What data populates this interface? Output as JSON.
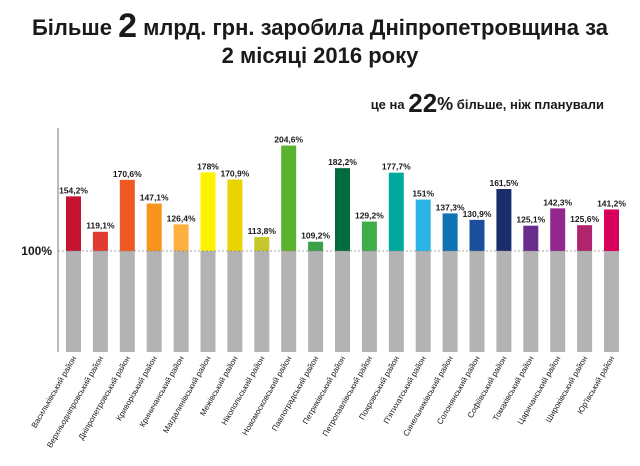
{
  "title": {
    "line1_before": "Більше",
    "line1_number": "2",
    "line1_after": "млрд. грн. заробила Дніпропетровщина за",
    "line2": "2 місяці 2016 року"
  },
  "subtitle": {
    "before": "це на",
    "number": "22",
    "percent": "%",
    "after": "більше, ніж планували"
  },
  "chart_data": {
    "type": "bar",
    "reference_value": 100,
    "reference_label": "100%",
    "ylim": [
      0,
      210
    ],
    "categories": [
      "Васильківський район",
      "Верхньодніпровський район",
      "Дніпропетровський район",
      "Криворізький район",
      "Криничанський район",
      "Магдалинівський район",
      "Межівський район",
      "Нікопольський район",
      "Новомосковський район",
      "Павлоградський район",
      "Петриківський район",
      "Петропавлівський район",
      "Покровський район",
      "П'ятихатський район",
      "Синельниківський район",
      "Солонянський район",
      "Софіївський район",
      "Томаківський район",
      "Царичанський район",
      "Широківський район",
      "Юр'ївський район"
    ],
    "values": [
      154.2,
      119.1,
      170.6,
      147.1,
      126.4,
      178,
      170.9,
      113.8,
      204.6,
      109.2,
      182.2,
      129.2,
      177.7,
      151,
      137.3,
      130.9,
      161.5,
      125.1,
      142.3,
      125.6,
      141.2
    ],
    "value_labels": [
      "154,2%",
      "119,1%",
      "170,6%",
      "147,1%",
      "126,4%",
      "178%",
      "170,9%",
      "113,8%",
      "204,6%",
      "109,2%",
      "182,2%",
      "129,2%",
      "177,7%",
      "151%",
      "137,3%",
      "130,9%",
      "161,5%",
      "125,1%",
      "142,3%",
      "125,6%",
      "141,2%"
    ],
    "colors": [
      "#c4122f",
      "#e03c31",
      "#ef5a24",
      "#f7941d",
      "#fbb040",
      "#fff200",
      "#e8d500",
      "#c4c82a",
      "#5ab230",
      "#3aa14a",
      "#006b3c",
      "#3fae49",
      "#00a99d",
      "#2bb3e6",
      "#0e72b5",
      "#1b4f9c",
      "#1b2c6b",
      "#6a2c8c",
      "#92278f",
      "#b0246c",
      "#d7005a"
    ],
    "base_color": "#b3b3b3",
    "grid": false
  }
}
